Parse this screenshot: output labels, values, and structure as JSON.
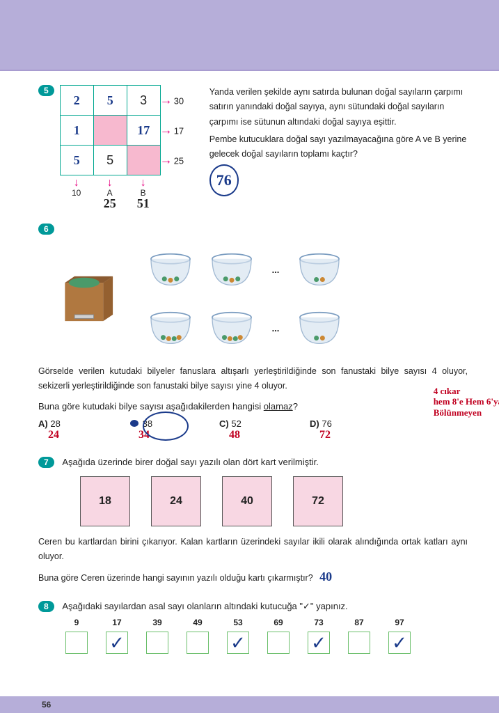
{
  "page_number": "56",
  "colors": {
    "header_band": "#b6aed9",
    "qnum_bg": "#009999",
    "grid_border": "#00a790",
    "pink_cell": "#f7b9cf",
    "arrow": "#e6007e",
    "handwrite_blue": "#1a3a8a",
    "handwrite_red": "#c00020",
    "card_bg": "#f8d7e3",
    "prime_box_border": "#6bbf6b"
  },
  "q5": {
    "num": "5",
    "grid": [
      [
        "2",
        "5",
        "3"
      ],
      [
        "1",
        "",
        "17"
      ],
      [
        "5",
        "5",
        ""
      ]
    ],
    "cell_style": {
      "r0c0": "hw",
      "r0c1": "hw",
      "r0c2": "print",
      "r1c0": "hw",
      "r1c1": "pink",
      "r1c2": "hw",
      "r2c0": "hw",
      "r2c1": "print",
      "r2c2": "pink"
    },
    "right_vals": [
      "30",
      "17",
      "25"
    ],
    "bottom_vals": [
      "10",
      "A",
      "B"
    ],
    "bottom_hw": [
      "",
      "25",
      "51"
    ],
    "text1": "Yanda verilen şekilde aynı satırda bulunan doğal sayıların çarpımı satırın yanındaki doğal sayıya, aynı sütundaki doğal sayıların çarpımı ise sütunun altındaki doğal sayıya eşittir.",
    "text2": "Pembe kutucuklara doğal sayı yazılmayacağına göre A ve B yerine gelecek doğal sayıların toplamı kaçtır?",
    "answer_circled": "76"
  },
  "q6": {
    "num": "6",
    "text1": "Görselde verilen kutudaki bilyeler fanuslara altışarlı yerleştirildiğinde son fanustaki bilye sayısı 4 oluyor, sekizerli yerleştirildiğinde son fanustaki bilye sayısı yine 4 oluyor.",
    "question_pre": "Buna göre kutudaki bilye sayısı aşağıdakilerden hangisi ",
    "question_underlined": "olamaz",
    "question_post": "?",
    "options": [
      {
        "lab": "A)",
        "val": "28",
        "hw": "24"
      },
      {
        "lab": "B)",
        "val": "38",
        "hw": "34",
        "circled": true,
        "marble": true
      },
      {
        "lab": "C)",
        "val": "52",
        "hw": "48"
      },
      {
        "lab": "D)",
        "val": "76",
        "hw": "72"
      }
    ],
    "side_note_lines": [
      "4 cıkar",
      "hem 8'e Hem 6'ya",
      "Bölünmeyen"
    ]
  },
  "q7": {
    "num": "7",
    "intro": "Aşağıda üzerinde birer doğal sayı yazılı olan dört kart verilmiştir.",
    "cards": [
      "18",
      "24",
      "40",
      "72"
    ],
    "text1": "Ceren bu kartlardan birini çıkarıyor. Kalan kartların üzerindeki sayılar ikili olarak alındığında ortak katları aynı oluyor.",
    "text2": "Buna göre Ceren üzerinde hangi sayının yazılı olduğu kartı çıkarmıştır?",
    "answer_hw": "40"
  },
  "q8": {
    "num": "8",
    "intro": "Aşağıdaki sayılardan asal sayı olanların altındaki kutucuğa \"✓\" yapınız.",
    "items": [
      {
        "n": "9",
        "check": false
      },
      {
        "n": "17",
        "check": true
      },
      {
        "n": "39",
        "check": false
      },
      {
        "n": "49",
        "check": false
      },
      {
        "n": "53",
        "check": true
      },
      {
        "n": "69",
        "check": false
      },
      {
        "n": "73",
        "check": true
      },
      {
        "n": "87",
        "check": false
      },
      {
        "n": "97",
        "check": true
      }
    ]
  }
}
